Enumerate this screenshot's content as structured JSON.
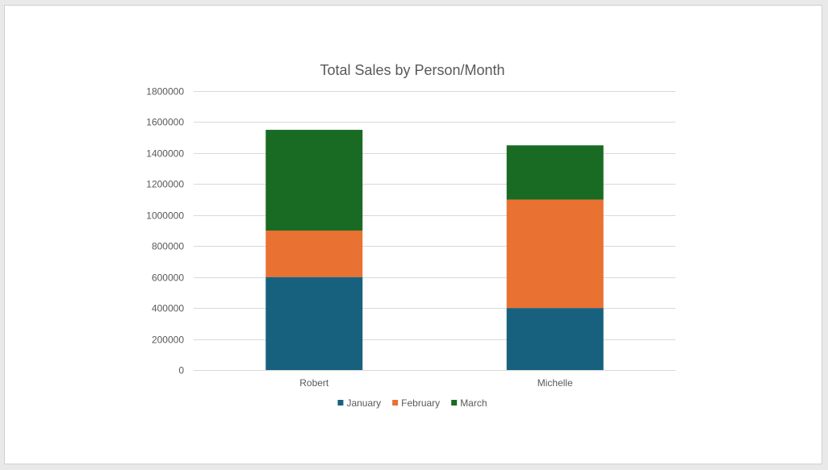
{
  "chart_data": {
    "type": "bar",
    "stacked": true,
    "title": "Total Sales by Person/Month",
    "xlabel": "",
    "ylabel": "",
    "categories": [
      "Robert",
      "Michelle"
    ],
    "series": [
      {
        "name": "January",
        "values": [
          600000,
          400000
        ],
        "color": "#17617f"
      },
      {
        "name": "February",
        "values": [
          300000,
          700000
        ],
        "color": "#e97132"
      },
      {
        "name": "March",
        "values": [
          650000,
          350000
        ],
        "color": "#196b24"
      }
    ],
    "ylim": [
      0,
      1800000
    ],
    "yticks": [
      "0",
      "200000",
      "400000",
      "600000",
      "800000",
      "1000000",
      "1200000",
      "1400000",
      "1600000",
      "1800000"
    ],
    "grid": true,
    "legend_position": "bottom"
  }
}
